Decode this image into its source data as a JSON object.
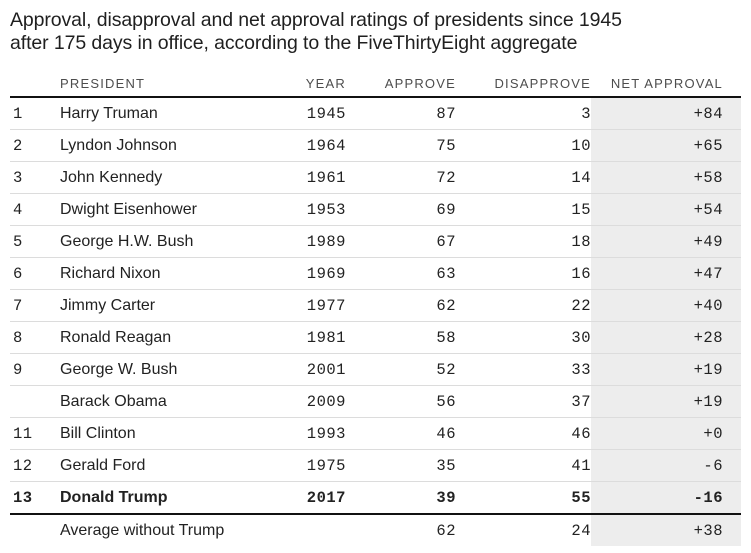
{
  "colors": {
    "background": "#ffffff",
    "body_text": "#222222",
    "title_text": "#1f1f1f",
    "header_text": "#4d4d4d",
    "row_divider": "#dcdcdc",
    "strong_rule": "#111111",
    "net_column_bg": "#ededed"
  },
  "title": {
    "lines": [
      "Approval, disapproval and net approval ratings of presidents since 1945",
      "after 175 days in office, according to the FiveThirtyEight aggregate"
    ]
  },
  "chart_data": {
    "type": "table",
    "title": "Approval, disapproval and net approval ratings of presidents since 1945 after 175 days in office, according to the FiveThirtyEight aggregate",
    "columns": [
      "PRESIDENT",
      "YEAR",
      "APPROVE",
      "DISAPPROVE",
      "NET APPROVAL"
    ],
    "rows": [
      {
        "rank": "1",
        "president": "Harry Truman",
        "year": "1945",
        "approve": "87",
        "disapprove": "3",
        "net": "+84"
      },
      {
        "rank": "2",
        "president": "Lyndon Johnson",
        "year": "1964",
        "approve": "75",
        "disapprove": "10",
        "net": "+65"
      },
      {
        "rank": "3",
        "president": "John Kennedy",
        "year": "1961",
        "approve": "72",
        "disapprove": "14",
        "net": "+58"
      },
      {
        "rank": "4",
        "president": "Dwight Eisenhower",
        "year": "1953",
        "approve": "69",
        "disapprove": "15",
        "net": "+54"
      },
      {
        "rank": "5",
        "president": "George H.W. Bush",
        "year": "1989",
        "approve": "67",
        "disapprove": "18",
        "net": "+49"
      },
      {
        "rank": "6",
        "president": "Richard Nixon",
        "year": "1969",
        "approve": "63",
        "disapprove": "16",
        "net": "+47"
      },
      {
        "rank": "7",
        "president": "Jimmy Carter",
        "year": "1977",
        "approve": "62",
        "disapprove": "22",
        "net": "+40"
      },
      {
        "rank": "8",
        "president": "Ronald Reagan",
        "year": "1981",
        "approve": "58",
        "disapprove": "30",
        "net": "+28"
      },
      {
        "rank": "9",
        "president": "George W. Bush",
        "year": "2001",
        "approve": "52",
        "disapprove": "33",
        "net": "+19"
      },
      {
        "rank": "",
        "president": "Barack Obama",
        "year": "2009",
        "approve": "56",
        "disapprove": "37",
        "net": "+19"
      },
      {
        "rank": "11",
        "president": "Bill Clinton",
        "year": "1993",
        "approve": "46",
        "disapprove": "46",
        "net": "+0"
      },
      {
        "rank": "12",
        "president": "Gerald Ford",
        "year": "1975",
        "approve": "35",
        "disapprove": "41",
        "net": "-6"
      },
      {
        "rank": "13",
        "president": "Donald Trump",
        "year": "2017",
        "approve": "39",
        "disapprove": "55",
        "net": "-16"
      },
      {
        "rank": "",
        "president": "Average without Trump",
        "year": "",
        "approve": "62",
        "disapprove": "24",
        "net": "+38"
      }
    ]
  }
}
